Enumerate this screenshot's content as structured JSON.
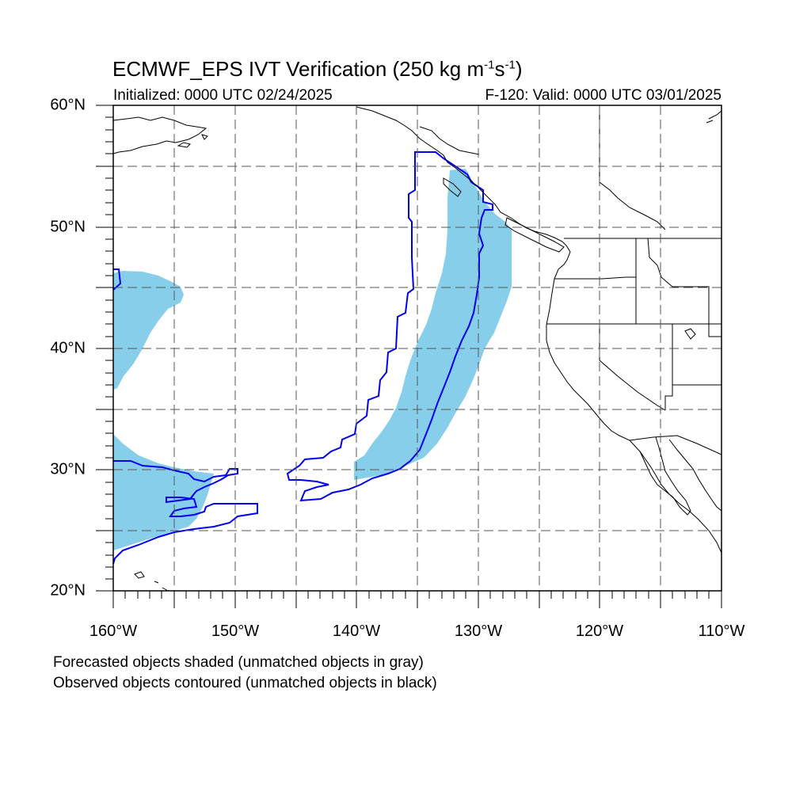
{
  "title": {
    "main": "ECMWF_EPS IVT Verification (250 kg m",
    "exp1": "-1",
    "mid": "s",
    "exp2": "-1",
    "end": ")"
  },
  "subtitle": {
    "initialized": "Initialized: 0000 UTC 02/24/2025",
    "valid": "F-120: Valid: 0000 UTC 03/01/2025"
  },
  "map": {
    "lat_range": [
      20,
      60
    ],
    "lon_range": [
      -160,
      -110
    ],
    "lat_labels": [
      "20°N",
      "30°N",
      "40°N",
      "50°N",
      "60°N"
    ],
    "lon_labels": [
      "160°W",
      "150°W",
      "140°W",
      "130°W",
      "120°W",
      "110°W"
    ],
    "grid": "dashed, every 5 degrees",
    "colors": {
      "forecast_fill": "#87ceeb",
      "observed_contour": "#0000ee",
      "coastline": "#000000",
      "grid": "#555555"
    }
  },
  "legend_notes": [
    "Forecasted objects shaded (unmatched objects in gray)",
    "Observed objects contoured (unmatched objects in black)"
  ]
}
